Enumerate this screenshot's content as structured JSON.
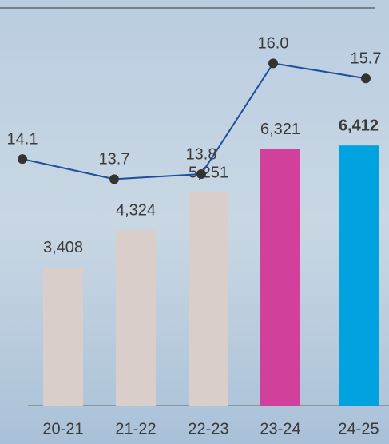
{
  "chart_data": {
    "type": "bar-line",
    "categories": [
      "20-21",
      "21-22",
      "22-23",
      "23-24",
      "24-25"
    ],
    "bars": {
      "values": [
        3408,
        4324,
        5251,
        6321,
        6412
      ],
      "value_labels": [
        "3,408",
        "4,324",
        "5,251",
        "6,321",
        "6,412"
      ],
      "colors": [
        "#d9ceca",
        "#d9ceca",
        "#d9ceca",
        "#d1409a",
        "#00a3e0"
      ]
    },
    "line": {
      "values": [
        14.1,
        13.7,
        13.8,
        16.0,
        15.7
      ],
      "value_labels": [
        "14.1",
        "13.7",
        "13.8",
        "16.0",
        "15.7"
      ],
      "color": "#1f4e9a",
      "axis": "y2"
    },
    "ylim": [
      0,
      9800
    ],
    "y2lim": [
      9.2,
      17.1
    ]
  }
}
